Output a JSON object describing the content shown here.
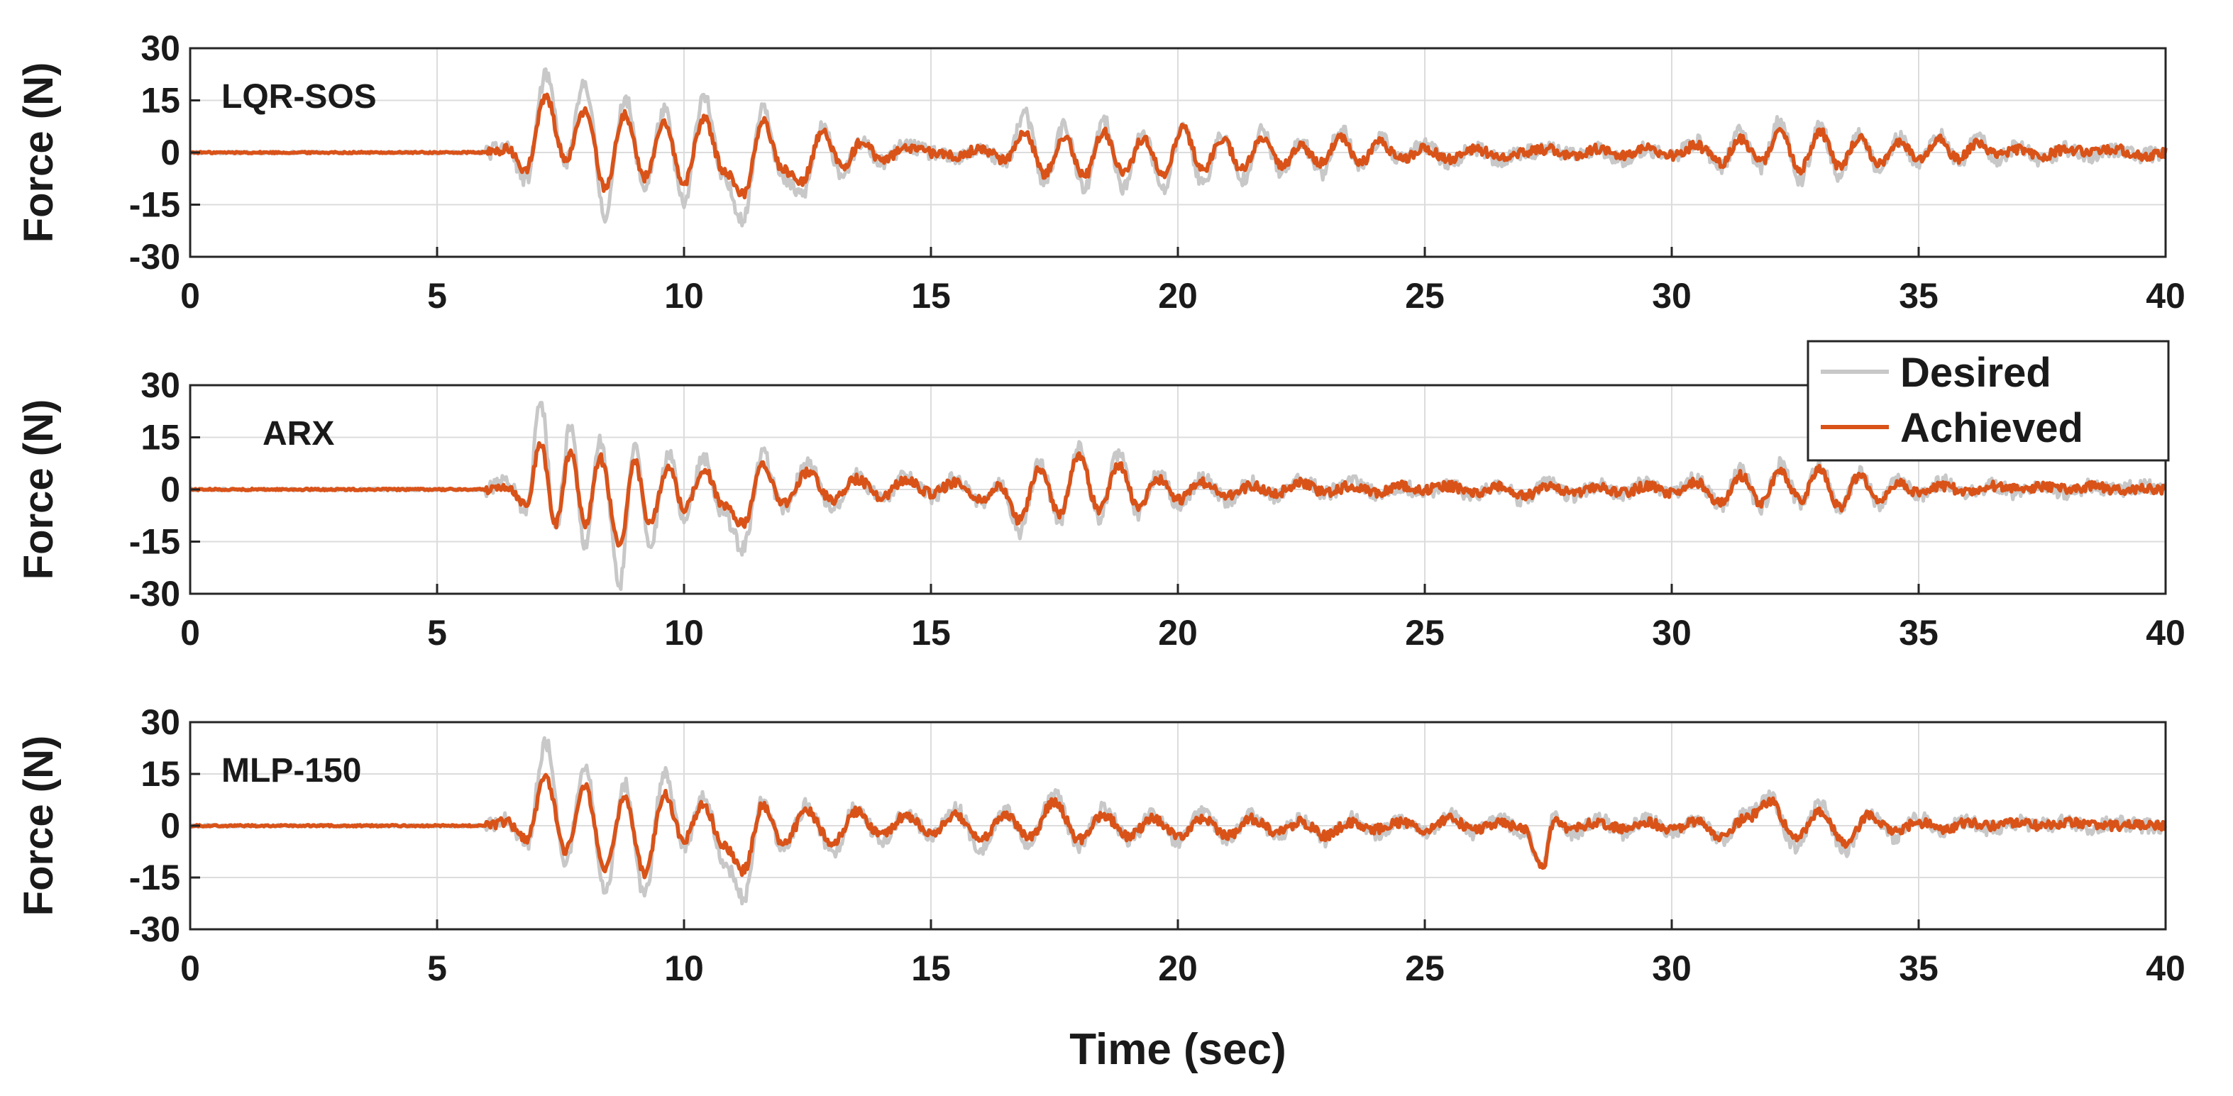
{
  "colors": {
    "desired": "#c8c8c8",
    "achieved": "#d95319",
    "axes": "#262626",
    "grid": "#dcdcdc"
  },
  "legend": {
    "placement": "right, between top and middle panels",
    "entries": [
      "Desired",
      "Achieved"
    ]
  },
  "chart_data": [
    {
      "type": "line",
      "title": "LQR-SOS",
      "xlabel": "",
      "ylabel": "Force (N)",
      "xlim": [
        0,
        40
      ],
      "ylim": [
        -30,
        30
      ],
      "xticks": [
        0,
        5,
        10,
        15,
        20,
        25,
        30,
        35,
        40
      ],
      "yticks": [
        30,
        15,
        0,
        -15,
        -30
      ],
      "grid": true,
      "series": [
        {
          "name": "Desired",
          "x": [
            0,
            6,
            6.4,
            6.8,
            7.2,
            7.6,
            8.0,
            8.4,
            8.8,
            9.2,
            9.6,
            10.0,
            10.4,
            10.8,
            11.2,
            11.6,
            12.0,
            12.4,
            12.8,
            13.2,
            13.6,
            14.0,
            14.5,
            15.0,
            15.5,
            16.0,
            16.5,
            16.9,
            17.3,
            17.7,
            18.1,
            18.5,
            18.9,
            19.3,
            19.7,
            20.1,
            20.5,
            20.9,
            21.3,
            21.7,
            22.1,
            22.5,
            22.9,
            23.3,
            23.7,
            24.1,
            24.5,
            25.0,
            25.5,
            26.0,
            26.5,
            27.0,
            27.5,
            28.0,
            28.5,
            29.0,
            29.5,
            30.0,
            30.5,
            31.0,
            31.4,
            31.8,
            32.2,
            32.6,
            33.0,
            33.4,
            33.8,
            34.2,
            34.6,
            35.0,
            35.4,
            35.8,
            36.2,
            36.6,
            37.0,
            37.5,
            38.0,
            38.5,
            39.0,
            39.5,
            40.0
          ],
          "y": [
            0,
            0,
            2,
            -8,
            22,
            -3,
            20,
            -18,
            16,
            -10,
            12,
            -15,
            17,
            -8,
            -19,
            14,
            -8,
            -12,
            7,
            -6,
            3,
            -3,
            2,
            0,
            -2,
            1,
            -3,
            11,
            -9,
            8,
            -11,
            9,
            -10,
            6,
            -11,
            8,
            -9,
            5,
            -8,
            6,
            -6,
            3,
            -6,
            7,
            -4,
            4,
            -2,
            2,
            -3,
            1,
            -2,
            0,
            1,
            -1,
            1,
            -2,
            1,
            -1,
            3,
            -4,
            6,
            -4,
            9,
            -8,
            8,
            -7,
            6,
            -5,
            4,
            -3,
            5,
            -3,
            4,
            -2,
            2,
            -2,
            1,
            -1,
            1,
            -1,
            0
          ]
        },
        {
          "name": "Achieved",
          "x": [
            0,
            6,
            6.4,
            6.8,
            7.2,
            7.6,
            8.0,
            8.4,
            8.8,
            9.2,
            9.6,
            10.0,
            10.4,
            10.8,
            11.2,
            11.6,
            12.0,
            12.4,
            12.8,
            13.2,
            13.6,
            14.0,
            14.5,
            15.0,
            15.5,
            16.0,
            16.5,
            16.9,
            17.3,
            17.7,
            18.1,
            18.5,
            18.9,
            19.3,
            19.7,
            20.1,
            20.5,
            20.9,
            21.3,
            21.7,
            22.1,
            22.5,
            22.9,
            23.3,
            23.7,
            24.1,
            24.5,
            25.0,
            25.5,
            26.0,
            26.5,
            27.0,
            27.5,
            28.0,
            28.5,
            29.0,
            29.5,
            30.0,
            30.5,
            31.0,
            31.4,
            31.8,
            32.2,
            32.6,
            33.0,
            33.4,
            33.8,
            34.2,
            34.6,
            35.0,
            35.4,
            35.8,
            36.2,
            36.6,
            37.0,
            37.5,
            38.0,
            38.5,
            39.0,
            39.5,
            40.0
          ],
          "y": [
            0,
            0,
            1,
            -5,
            16,
            -2,
            12,
            -10,
            11,
            -7,
            8,
            -9,
            10,
            -5,
            -12,
            9,
            -5,
            -8,
            6,
            -4,
            3,
            -2,
            1,
            0,
            -1,
            1,
            -2,
            6,
            -6,
            5,
            -7,
            6,
            -6,
            4,
            -6,
            7,
            -5,
            4,
            -5,
            4,
            -4,
            2,
            -3,
            4,
            -3,
            3,
            -2,
            1,
            -2,
            1,
            -1,
            0,
            1,
            -1,
            1,
            -1,
            1,
            -1,
            2,
            -3,
            4,
            -3,
            6,
            -5,
            6,
            -4,
            4,
            -3,
            3,
            -2,
            4,
            -2,
            3,
            -1,
            1,
            -1,
            1,
            0,
            1,
            -1,
            0
          ]
        }
      ]
    },
    {
      "type": "line",
      "title": "ARX",
      "xlabel": "",
      "ylabel": "Force (N)",
      "xlim": [
        0,
        40
      ],
      "ylim": [
        -30,
        30
      ],
      "xticks": [
        0,
        5,
        10,
        15,
        20,
        25,
        30,
        35,
        40
      ],
      "yticks": [
        30,
        15,
        0,
        -15,
        -30
      ],
      "grid": true,
      "series": [
        {
          "name": "Desired",
          "x": [
            0,
            6,
            6.4,
            6.8,
            7.1,
            7.4,
            7.7,
            8.0,
            8.3,
            8.7,
            9.0,
            9.3,
            9.7,
            10.0,
            10.4,
            10.8,
            11.2,
            11.6,
            12.0,
            12.5,
            13.0,
            13.5,
            14.0,
            14.5,
            15.0,
            15.5,
            16.0,
            16.4,
            16.8,
            17.2,
            17.6,
            18.0,
            18.4,
            18.8,
            19.2,
            19.6,
            20.0,
            20.5,
            21.0,
            21.5,
            22.0,
            22.5,
            23.0,
            23.5,
            24.0,
            24.5,
            25.0,
            25.5,
            26.0,
            26.5,
            27.0,
            27.5,
            28.0,
            28.5,
            29.0,
            29.5,
            30.0,
            30.5,
            31.0,
            31.4,
            31.8,
            32.2,
            32.6,
            33.0,
            33.4,
            33.8,
            34.2,
            34.6,
            35.0,
            35.5,
            36.0,
            36.5,
            37.0,
            37.5,
            38.0,
            38.5,
            39.0,
            39.5,
            40.0
          ],
          "y": [
            0,
            0,
            2,
            -6,
            25,
            -12,
            19,
            -17,
            14,
            -27,
            13,
            -16,
            10,
            -8,
            9,
            -7,
            -17,
            10,
            -6,
            7,
            -5,
            4,
            -3,
            4,
            -2,
            3,
            -4,
            2,
            -12,
            8,
            -9,
            12,
            -8,
            10,
            -7,
            5,
            -4,
            3,
            -3,
            2,
            -2,
            3,
            -1,
            2,
            -1,
            1,
            -1,
            1,
            -2,
            1,
            -3,
            2,
            -2,
            1,
            -1,
            2,
            -1,
            3,
            -5,
            6,
            -6,
            7,
            -4,
            8,
            -6,
            5,
            -4,
            3,
            -2,
            2,
            -1,
            1,
            -1,
            1,
            -1,
            1,
            0,
            1,
            0
          ]
        },
        {
          "name": "Achieved",
          "x": [
            0,
            6,
            6.4,
            6.8,
            7.1,
            7.4,
            7.7,
            8.0,
            8.3,
            8.7,
            9.0,
            9.3,
            9.7,
            10.0,
            10.4,
            10.8,
            11.2,
            11.6,
            12.0,
            12.5,
            13.0,
            13.5,
            14.0,
            14.5,
            15.0,
            15.5,
            16.0,
            16.4,
            16.8,
            17.2,
            17.6,
            18.0,
            18.4,
            18.8,
            19.2,
            19.6,
            20.0,
            20.5,
            21.0,
            21.5,
            22.0,
            22.5,
            23.0,
            23.5,
            24.0,
            24.5,
            25.0,
            25.5,
            26.0,
            26.5,
            27.0,
            27.5,
            28.0,
            28.5,
            29.0,
            29.5,
            30.0,
            30.5,
            31.0,
            31.4,
            31.8,
            32.2,
            32.6,
            33.0,
            33.4,
            33.8,
            34.2,
            34.6,
            35.0,
            35.5,
            36.0,
            36.5,
            37.0,
            37.5,
            38.0,
            38.5,
            39.0,
            39.5,
            40.0
          ],
          "y": [
            0,
            0,
            1,
            -4,
            13,
            -10,
            11,
            -10,
            9,
            -16,
            8,
            -10,
            7,
            -6,
            6,
            -5,
            -10,
            7,
            -4,
            5,
            -3,
            3,
            -2,
            3,
            -1,
            2,
            -3,
            1,
            -9,
            6,
            -7,
            10,
            -6,
            7,
            -5,
            3,
            -3,
            2,
            -2,
            1,
            -1,
            2,
            -1,
            1,
            -1,
            1,
            0,
            1,
            -1,
            1,
            -2,
            1,
            -1,
            1,
            -1,
            1,
            -1,
            2,
            -4,
            4,
            -4,
            5,
            -3,
            6,
            -5,
            4,
            -3,
            2,
            -1,
            1,
            -1,
            1,
            0,
            1,
            0,
            1,
            0,
            0,
            0
          ]
        }
      ]
    },
    {
      "type": "line",
      "title": "MLP-150",
      "xlabel": "Time (sec)",
      "ylabel": "Force (N)",
      "xlim": [
        0,
        40
      ],
      "ylim": [
        -30,
        30
      ],
      "xticks": [
        0,
        5,
        10,
        15,
        20,
        25,
        30,
        35,
        40
      ],
      "yticks": [
        30,
        15,
        0,
        -15,
        -30
      ],
      "grid": true,
      "series": [
        {
          "name": "Desired",
          "x": [
            0,
            6,
            6.4,
            6.8,
            7.2,
            7.6,
            8.0,
            8.4,
            8.8,
            9.2,
            9.6,
            10.0,
            10.4,
            10.8,
            11.2,
            11.6,
            12.0,
            12.5,
            13.0,
            13.5,
            14.0,
            14.5,
            15.0,
            15.5,
            16.0,
            16.5,
            17.0,
            17.5,
            18.0,
            18.5,
            19.0,
            19.5,
            20.0,
            20.5,
            21.0,
            21.5,
            22.0,
            22.5,
            23.0,
            23.5,
            24.0,
            24.5,
            25.0,
            25.5,
            26.0,
            26.5,
            27.0,
            27.4,
            27.6,
            28.0,
            28.5,
            29.0,
            29.5,
            30.0,
            30.5,
            31.0,
            31.5,
            32.0,
            32.5,
            33.0,
            33.5,
            34.0,
            34.5,
            35.0,
            35.5,
            36.0,
            36.5,
            37.0,
            37.5,
            38.0,
            38.5,
            39.0,
            39.5,
            40.0
          ],
          "y": [
            0,
            0,
            2,
            -6,
            24,
            -10,
            17,
            -19,
            12,
            -20,
            15,
            -6,
            9,
            -10,
            -21,
            8,
            -7,
            6,
            -8,
            6,
            -5,
            4,
            -3,
            5,
            -7,
            4,
            -5,
            9,
            -6,
            5,
            -4,
            3,
            -5,
            4,
            -4,
            3,
            -3,
            2,
            -4,
            2,
            -2,
            1,
            -2,
            3,
            -2,
            2,
            -2,
            -12,
            2,
            -2,
            2,
            -2,
            2,
            -2,
            2,
            -4,
            3,
            8,
            -6,
            6,
            -7,
            4,
            -3,
            2,
            -1,
            1,
            -1,
            1,
            0,
            1,
            -1,
            1,
            0,
            0
          ]
        },
        {
          "name": "Achieved",
          "x": [
            0,
            6,
            6.4,
            6.8,
            7.2,
            7.6,
            8.0,
            8.4,
            8.8,
            9.2,
            9.6,
            10.0,
            10.4,
            10.8,
            11.2,
            11.6,
            12.0,
            12.5,
            13.0,
            13.5,
            14.0,
            14.5,
            15.0,
            15.5,
            16.0,
            16.5,
            17.0,
            17.5,
            18.0,
            18.5,
            19.0,
            19.5,
            20.0,
            20.5,
            21.0,
            21.5,
            22.0,
            22.5,
            23.0,
            23.5,
            24.0,
            24.5,
            25.0,
            25.5,
            26.0,
            26.5,
            27.0,
            27.4,
            27.6,
            28.0,
            28.5,
            29.0,
            29.5,
            30.0,
            30.5,
            31.0,
            31.5,
            32.0,
            32.5,
            33.0,
            33.5,
            34.0,
            34.5,
            35.0,
            35.5,
            36.0,
            36.5,
            37.0,
            37.5,
            38.0,
            38.5,
            39.0,
            39.5,
            40.0
          ],
          "y": [
            0,
            0,
            1,
            -4,
            14,
            -7,
            11,
            -12,
            8,
            -14,
            9,
            -4,
            6,
            -6,
            -13,
            6,
            -5,
            4,
            -5,
            4,
            -3,
            3,
            -2,
            3,
            -4,
            3,
            -3,
            7,
            -4,
            3,
            -3,
            2,
            -3,
            2,
            -3,
            2,
            -2,
            1,
            -3,
            1,
            -1,
            1,
            -1,
            2,
            -1,
            1,
            -1,
            -12,
            1,
            -1,
            1,
            -1,
            1,
            -1,
            1,
            -3,
            2,
            7,
            -4,
            4,
            -5,
            3,
            -2,
            1,
            -1,
            1,
            0,
            1,
            0,
            1,
            0,
            0,
            0,
            0
          ]
        }
      ]
    }
  ]
}
